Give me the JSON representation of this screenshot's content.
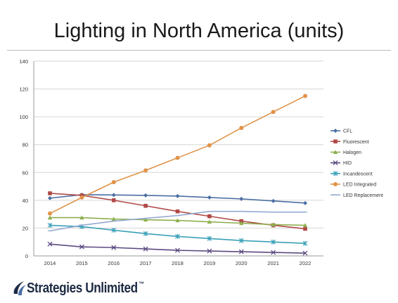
{
  "page": {
    "title": "Lighting in North America (units)"
  },
  "brand": {
    "name": "Strategies Unlimited",
    "mark": "™",
    "color": "#1d2a44"
  },
  "chart_data": {
    "type": "line",
    "title": "",
    "xlabel": "",
    "ylabel": "",
    "x": [
      "2014",
      "2015",
      "2016",
      "2017",
      "2018",
      "2019",
      "2020",
      "2021",
      "2022"
    ],
    "ylim": [
      0,
      140
    ],
    "yticks": [
      0,
      20,
      40,
      60,
      80,
      100,
      120,
      140
    ],
    "grid": true,
    "legend_position": "right",
    "series": [
      {
        "name": "CFL",
        "color": "#4a6ea3",
        "marker": "diamond",
        "values": [
          41.5,
          44,
          43.8,
          43.5,
          43,
          42,
          41,
          39.5,
          38
        ]
      },
      {
        "name": "Fluorescent",
        "color": "#b04a48",
        "marker": "square",
        "values": [
          45,
          43.5,
          40,
          36,
          32,
          28.5,
          25,
          22,
          19.5
        ]
      },
      {
        "name": "Halogen",
        "color": "#8fb050",
        "marker": "triangle",
        "values": [
          27.5,
          27.5,
          26.5,
          26,
          25.5,
          24.5,
          23.5,
          22.5,
          22
        ]
      },
      {
        "name": "HID",
        "color": "#5c4a82",
        "marker": "x",
        "values": [
          8.5,
          6.5,
          6,
          5,
          4,
          3.5,
          3,
          2.5,
          2
        ]
      },
      {
        "name": "Incandescent",
        "color": "#3aa0b8",
        "marker": "star",
        "values": [
          22,
          21,
          18.5,
          16,
          14,
          12.5,
          11,
          10,
          9
        ]
      },
      {
        "name": "LED Integrated",
        "color": "#e0934a",
        "marker": "circle",
        "values": [
          30.5,
          42,
          53,
          61.5,
          70.5,
          79.5,
          92,
          103.5,
          115
        ]
      },
      {
        "name": "LED Replacement",
        "color": "#93a9d1",
        "marker": "plus",
        "values": [
          18,
          22,
          25,
          27,
          29,
          32,
          32,
          31.5,
          31.5
        ]
      }
    ]
  }
}
